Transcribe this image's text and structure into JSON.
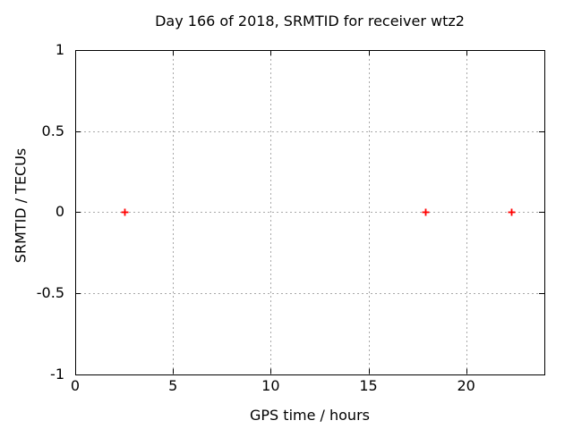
{
  "chart_data": {
    "type": "scatter",
    "title": "Day 166 of 2018, SRMTID for receiver wtz2",
    "xlabel": "GPS time / hours",
    "ylabel": "SRMTID / TECUs",
    "xlim": [
      0,
      24
    ],
    "ylim": [
      -1,
      1
    ],
    "xticks": [
      0,
      5,
      10,
      15,
      20
    ],
    "xtick_labels": [
      "0",
      "5",
      "10",
      "15",
      "20"
    ],
    "yticks": [
      -1,
      -0.5,
      0,
      0.5,
      1
    ],
    "ytick_labels": [
      "-1",
      "-0.5",
      "0",
      "0.5",
      "1"
    ],
    "grid": true,
    "grid_style": "dotted",
    "legend": "none",
    "series": [
      {
        "marker": "plus",
        "color": "#ff0000",
        "points": [
          [
            2.5,
            0.0
          ],
          [
            17.9,
            0.0
          ],
          [
            22.3,
            0.0
          ]
        ]
      }
    ],
    "colors": {
      "background": "#ffffff",
      "border": "#000000",
      "grid": "#a8a8a8",
      "text": "#000000"
    }
  }
}
